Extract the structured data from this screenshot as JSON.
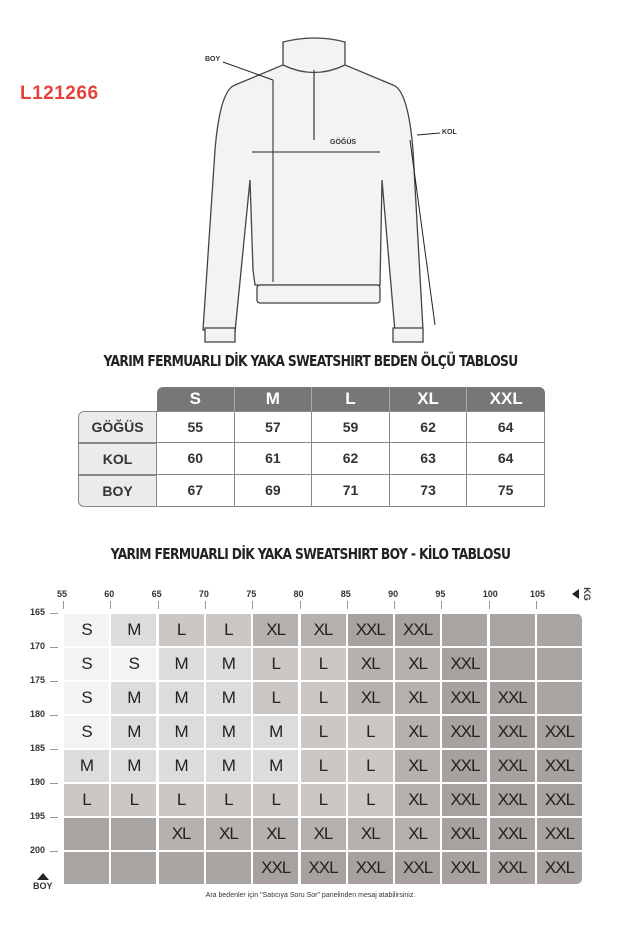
{
  "product_code": "L121266",
  "garment_labels": {
    "height": "BOY",
    "chest": "GÖĞÜS",
    "sleeve": "KOL"
  },
  "measurement_table": {
    "title": "YARIM FERMUARLI DİK YAKA SWEATSHIRT BEDEN ÖLÇÜ TABLOSU",
    "sizes": [
      "S",
      "M",
      "L",
      "XL",
      "XXL"
    ],
    "rows": [
      {
        "label": "GÖĞÜS",
        "values": [
          "55",
          "57",
          "59",
          "62",
          "64"
        ]
      },
      {
        "label": "KOL",
        "values": [
          "60",
          "61",
          "62",
          "63",
          "64"
        ]
      },
      {
        "label": "BOY",
        "values": [
          "67",
          "69",
          "71",
          "73",
          "75"
        ]
      }
    ]
  },
  "size_grid": {
    "title": "YARIM FERMUARLI DİK YAKA SWEATSHIRT BOY - KİLO TABLOSU",
    "weight_unit": "KG",
    "height_unit": "BOY",
    "weights": [
      "55",
      "60",
      "65",
      "70",
      "75",
      "80",
      "85",
      "90",
      "95",
      "100",
      "105"
    ],
    "heights": [
      "165",
      "170",
      "175",
      "180",
      "185",
      "190",
      "195",
      "200"
    ],
    "rows": [
      [
        "S",
        "M",
        "L",
        "L",
        "XL",
        "XL",
        "XXL",
        "XXL",
        "",
        "",
        ""
      ],
      [
        "S",
        "S",
        "M",
        "M",
        "L",
        "L",
        "XL",
        "XL",
        "XXL",
        "",
        ""
      ],
      [
        "S",
        "M",
        "M",
        "M",
        "L",
        "L",
        "XL",
        "XL",
        "XXL",
        "XXL",
        ""
      ],
      [
        "S",
        "M",
        "M",
        "M",
        "M",
        "L",
        "L",
        "XL",
        "XXL",
        "XXL",
        "XXL"
      ],
      [
        "M",
        "M",
        "M",
        "M",
        "M",
        "L",
        "L",
        "XL",
        "XXL",
        "XXL",
        "XXL"
      ],
      [
        "L",
        "L",
        "L",
        "L",
        "L",
        "L",
        "L",
        "XL",
        "XXL",
        "XXL",
        "XXL"
      ],
      [
        "",
        "",
        "XL",
        "XL",
        "XL",
        "XL",
        "XL",
        "XL",
        "XXL",
        "XXL",
        "XXL"
      ],
      [
        "",
        "",
        "",
        "",
        "XXL",
        "XXL",
        "XXL",
        "XXL",
        "XXL",
        "XXL",
        "XXL"
      ]
    ],
    "size_colors": {
      "S": "#f4f3f2",
      "M": "#dedcda",
      "L": "#cac7c4",
      "XL": "#b5b1ae",
      "XXL": "#a7a29f",
      "": "#a9a5a2"
    },
    "note": "Ara bedenler için \"Satıcıya Soru Sor\" panelinden mesaj atabilirsiniz."
  }
}
